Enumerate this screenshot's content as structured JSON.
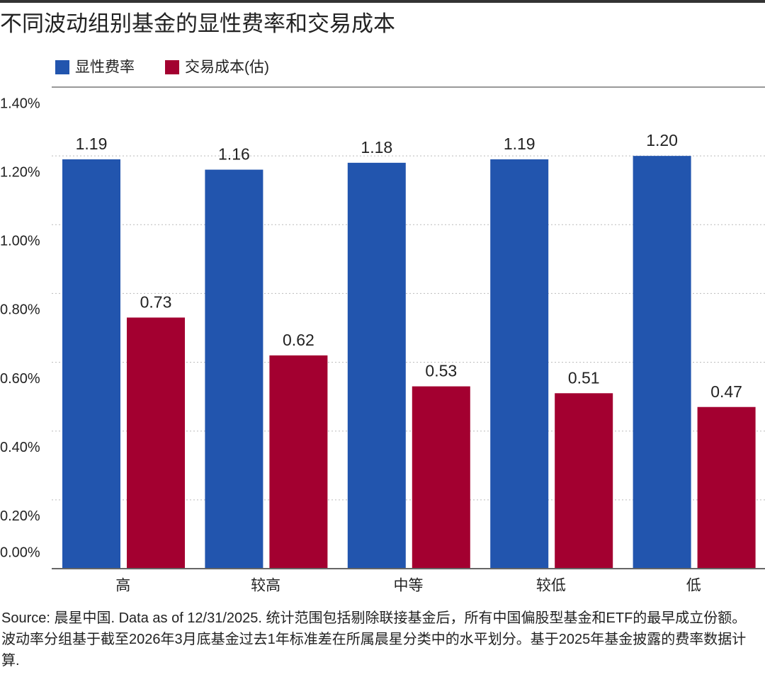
{
  "chart_data": {
    "type": "bar",
    "title": "不同波动组别基金的显性费率和交易成本",
    "categories": [
      "高",
      "较高",
      "中等",
      "较低",
      "低"
    ],
    "series": [
      {
        "name": "显性费率",
        "color": "#2255ae",
        "values": [
          1.19,
          1.16,
          1.18,
          1.19,
          1.2
        ],
        "value_labels": [
          "1.19",
          "1.16",
          "1.18",
          "1.19",
          "1.20"
        ]
      },
      {
        "name": "交易成本(估)",
        "color": "#a30030",
        "values": [
          0.73,
          0.62,
          0.53,
          0.51,
          0.47
        ],
        "value_labels": [
          "0.73",
          "0.62",
          "0.53",
          "0.51",
          "0.47"
        ]
      }
    ],
    "ylim": [
      0,
      1.4
    ],
    "yticks": [
      {
        "value": 0,
        "label": "0.00%"
      },
      {
        "value": 0.2,
        "label": "0.20%"
      },
      {
        "value": 0.4,
        "label": "0.40%"
      },
      {
        "value": 0.6,
        "label": "0.60%"
      },
      {
        "value": 0.8,
        "label": "0.80%"
      },
      {
        "value": 1.0,
        "label": "1.00%"
      },
      {
        "value": 1.2,
        "label": "1.20%"
      },
      {
        "value": 1.4,
        "label": "1.40%"
      }
    ],
    "grid": true,
    "note": "Source: 晨星中国. Data as of 12/31/2025. 统计范围包括剔除联接基金后，所有中国偏股型基金和ETF的最早成立份额。波动率分组基于截至2026年3月底基金过去1年标准差在所属晨星分类中的水平划分。基于2025年基金披露的费率数据计算."
  }
}
